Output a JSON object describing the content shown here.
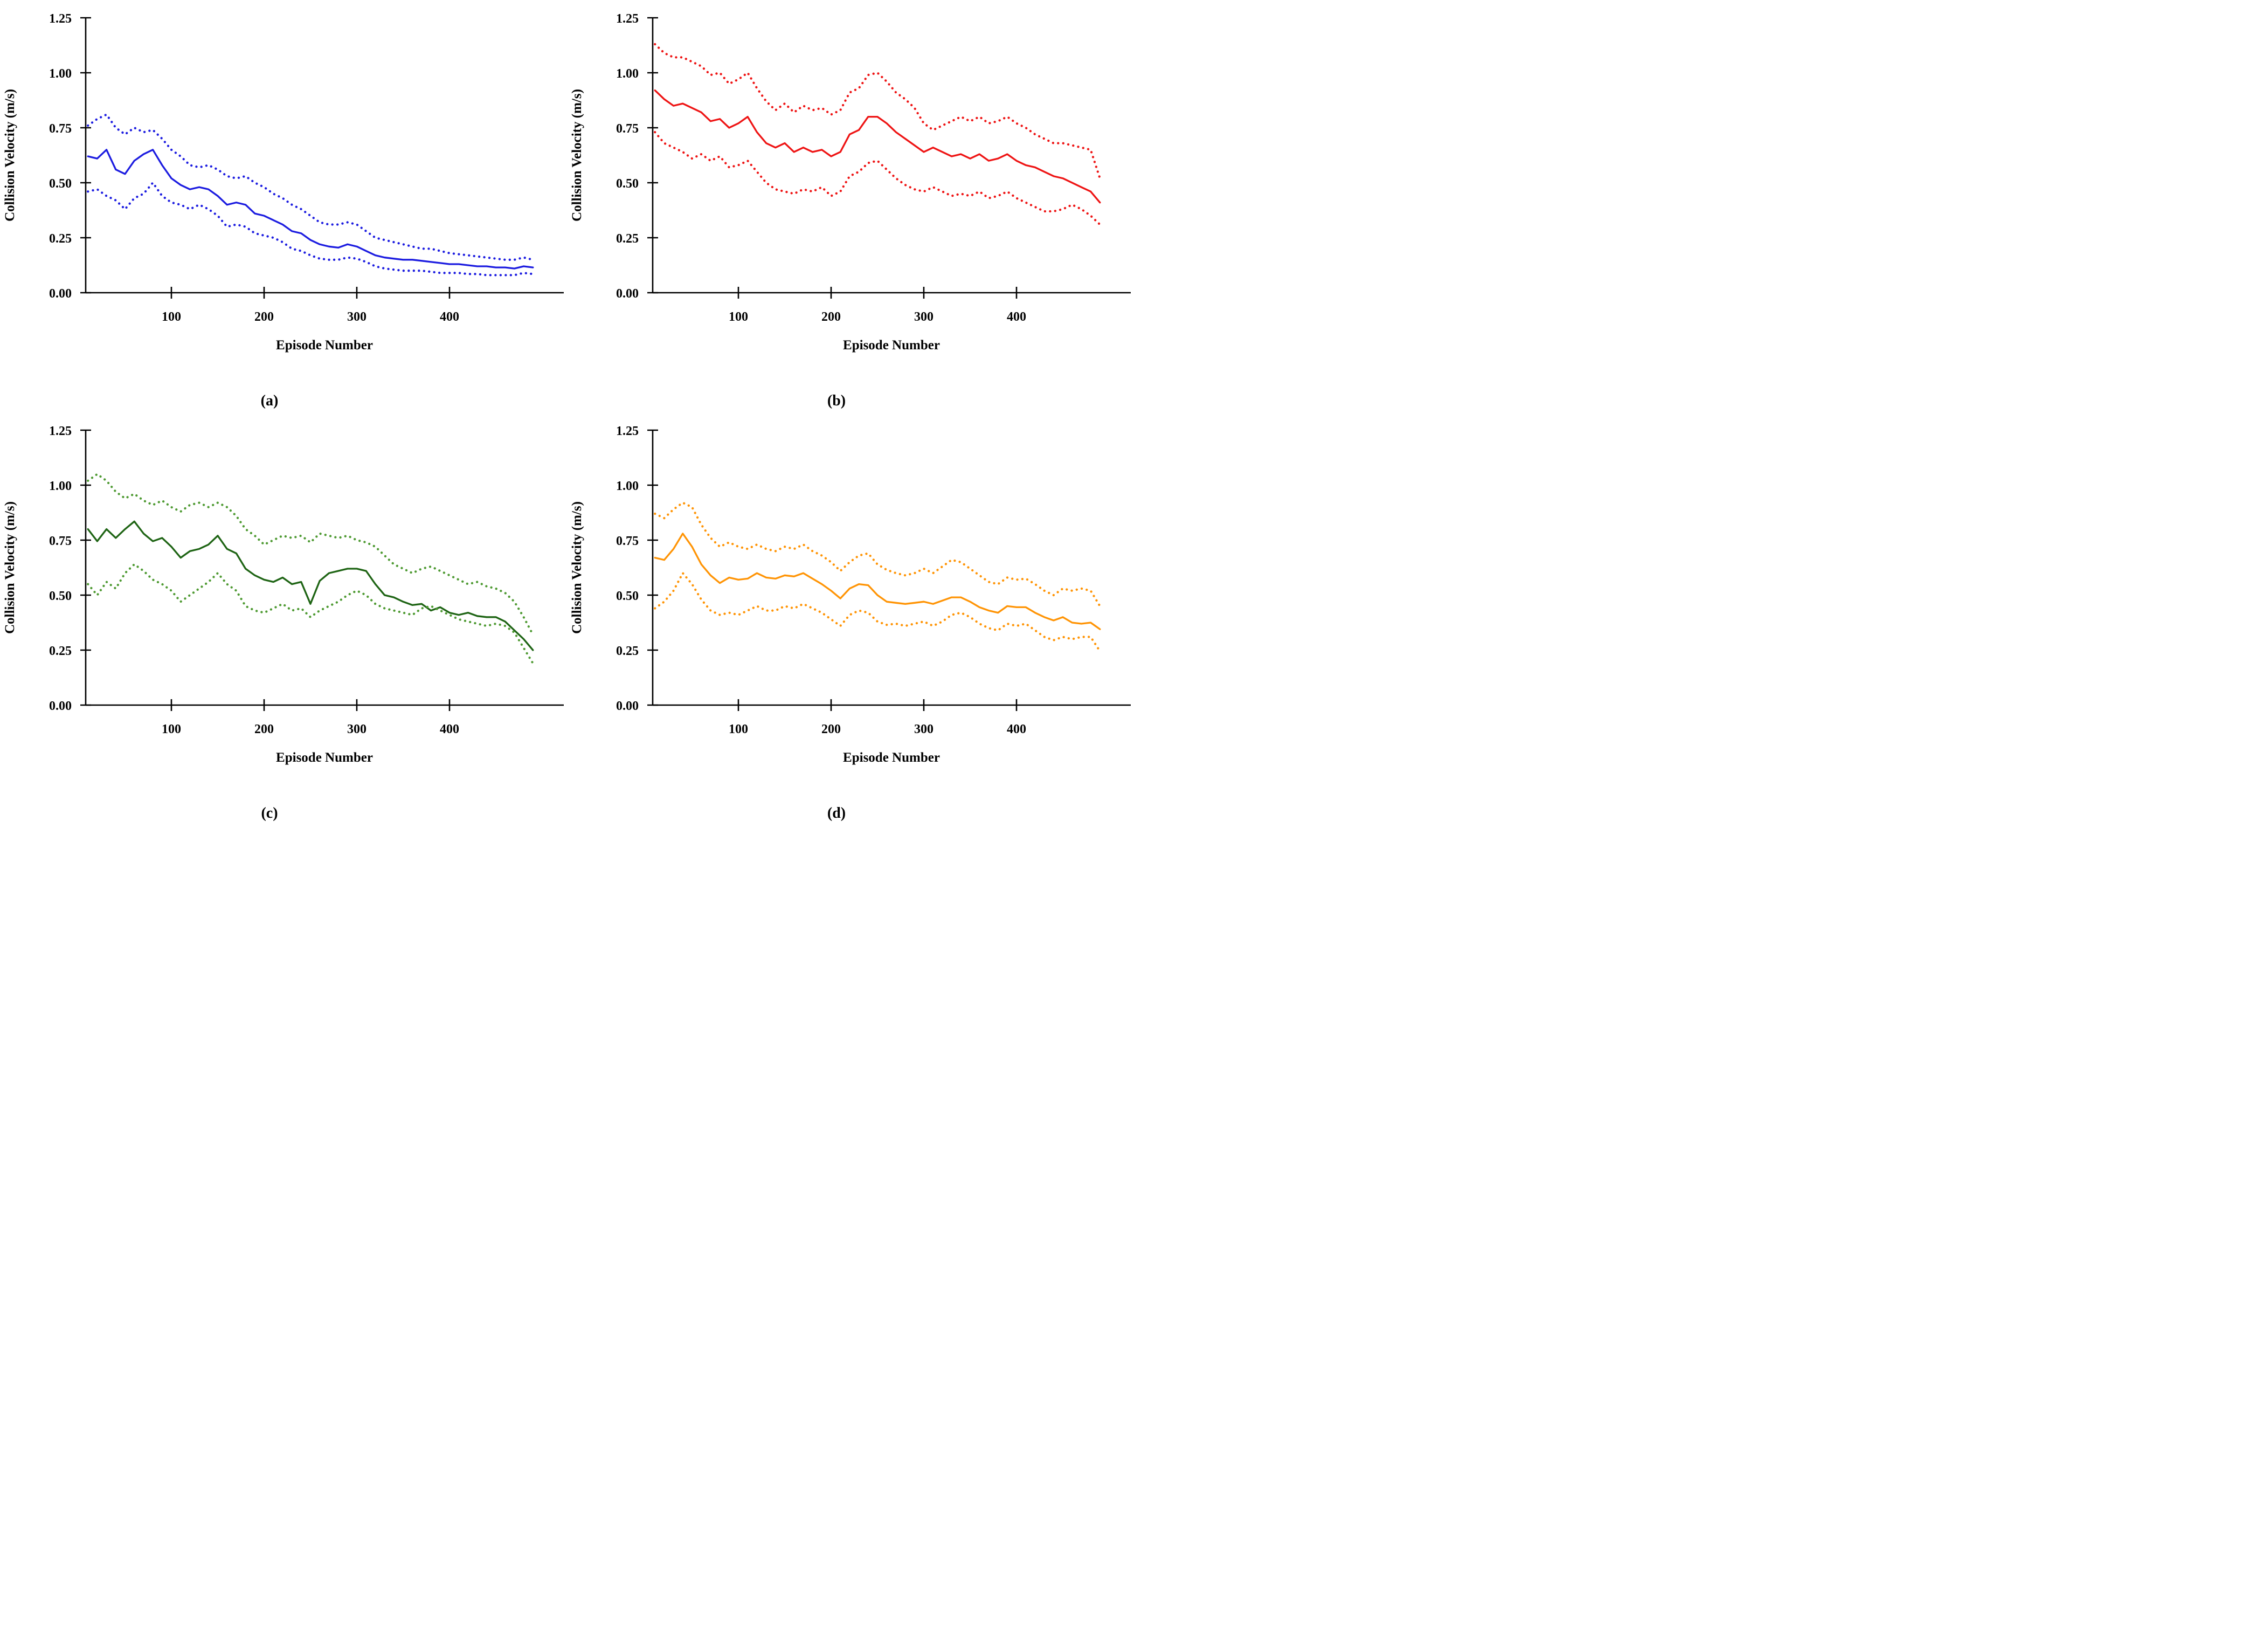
{
  "figure": {
    "ylabel": "Collision Velocity (m/s)",
    "xlabel": "Episode Number",
    "background": "#ffffff",
    "axis_color": "#000000",
    "y_ticks": [
      {
        "label": "0.00",
        "value": 0.0
      },
      {
        "label": "0.25",
        "value": 0.25
      },
      {
        "label": "0.50",
        "value": 0.5
      },
      {
        "label": "0.75",
        "value": 0.75
      },
      {
        "label": "1.00",
        "value": 1.0
      },
      {
        "label": "1.25",
        "value": 1.25
      }
    ],
    "x_ticks": [
      {
        "label": "100",
        "value": 100
      },
      {
        "label": "200",
        "value": 200
      },
      {
        "label": "300",
        "value": 300
      },
      {
        "label": "400",
        "value": 400
      }
    ]
  },
  "chart_data": [
    {
      "type": "line",
      "panel": "a",
      "caption": "(a)",
      "title": "",
      "xlabel": "Episode Number",
      "ylabel": "Collision Velocity (m/s)",
      "xlim": [
        0,
        510
      ],
      "ylim": [
        0,
        1.25
      ],
      "grid": false,
      "legend": "none",
      "line_color": "#1c1ce0",
      "bound_color": "#1c1ce0",
      "x": [
        10,
        20,
        30,
        40,
        50,
        60,
        70,
        80,
        90,
        100,
        110,
        120,
        130,
        140,
        150,
        160,
        170,
        180,
        190,
        200,
        210,
        220,
        230,
        240,
        250,
        260,
        270,
        280,
        290,
        300,
        310,
        320,
        330,
        340,
        350,
        360,
        370,
        380,
        390,
        400,
        410,
        420,
        430,
        440,
        450,
        460,
        470,
        480,
        490
      ],
      "series": [
        {
          "name": "mean",
          "style": "solid",
          "values": [
            0.62,
            0.61,
            0.65,
            0.56,
            0.54,
            0.6,
            0.63,
            0.65,
            0.58,
            0.52,
            0.49,
            0.47,
            0.48,
            0.47,
            0.44,
            0.4,
            0.41,
            0.4,
            0.36,
            0.35,
            0.33,
            0.31,
            0.28,
            0.27,
            0.24,
            0.22,
            0.21,
            0.205,
            0.22,
            0.21,
            0.19,
            0.17,
            0.16,
            0.155,
            0.15,
            0.15,
            0.145,
            0.14,
            0.135,
            0.13,
            0.13,
            0.125,
            0.12,
            0.12,
            0.115,
            0.115,
            0.11,
            0.12,
            0.115
          ]
        },
        {
          "name": "upper-bound",
          "style": "dotted",
          "values": [
            0.76,
            0.79,
            0.81,
            0.75,
            0.72,
            0.75,
            0.73,
            0.74,
            0.7,
            0.65,
            0.62,
            0.58,
            0.57,
            0.58,
            0.56,
            0.53,
            0.52,
            0.53,
            0.5,
            0.48,
            0.45,
            0.43,
            0.4,
            0.38,
            0.35,
            0.32,
            0.31,
            0.31,
            0.32,
            0.31,
            0.28,
            0.25,
            0.24,
            0.23,
            0.22,
            0.21,
            0.2,
            0.2,
            0.19,
            0.18,
            0.175,
            0.17,
            0.165,
            0.16,
            0.155,
            0.15,
            0.15,
            0.16,
            0.15
          ]
        },
        {
          "name": "lower-bound",
          "style": "dotted",
          "values": [
            0.46,
            0.47,
            0.44,
            0.42,
            0.38,
            0.43,
            0.45,
            0.5,
            0.44,
            0.41,
            0.4,
            0.38,
            0.4,
            0.38,
            0.35,
            0.3,
            0.31,
            0.3,
            0.27,
            0.26,
            0.25,
            0.23,
            0.2,
            0.19,
            0.17,
            0.155,
            0.15,
            0.15,
            0.16,
            0.155,
            0.14,
            0.12,
            0.11,
            0.105,
            0.1,
            0.1,
            0.1,
            0.095,
            0.09,
            0.09,
            0.09,
            0.085,
            0.085,
            0.08,
            0.08,
            0.08,
            0.08,
            0.09,
            0.085
          ]
        }
      ]
    },
    {
      "type": "line",
      "panel": "b",
      "caption": "(b)",
      "title": "",
      "xlabel": "Episode Number",
      "ylabel": "Collision Velocity (m/s)",
      "xlim": [
        0,
        510
      ],
      "ylim": [
        0,
        1.25
      ],
      "grid": false,
      "legend": "none",
      "line_color": "#ee1414",
      "bound_color": "#ee1414",
      "x": [
        10,
        20,
        30,
        40,
        50,
        60,
        70,
        80,
        90,
        100,
        110,
        120,
        130,
        140,
        150,
        160,
        170,
        180,
        190,
        200,
        210,
        220,
        230,
        240,
        250,
        260,
        270,
        280,
        290,
        300,
        310,
        320,
        330,
        340,
        350,
        360,
        370,
        380,
        390,
        400,
        410,
        420,
        430,
        440,
        450,
        460,
        470,
        480,
        490
      ],
      "series": [
        {
          "name": "mean",
          "style": "solid",
          "values": [
            0.92,
            0.88,
            0.85,
            0.86,
            0.84,
            0.82,
            0.78,
            0.79,
            0.75,
            0.77,
            0.8,
            0.73,
            0.68,
            0.66,
            0.68,
            0.64,
            0.66,
            0.64,
            0.65,
            0.62,
            0.64,
            0.72,
            0.74,
            0.8,
            0.8,
            0.77,
            0.73,
            0.7,
            0.67,
            0.64,
            0.66,
            0.64,
            0.62,
            0.63,
            0.61,
            0.63,
            0.6,
            0.61,
            0.63,
            0.6,
            0.58,
            0.57,
            0.55,
            0.53,
            0.52,
            0.5,
            0.48,
            0.46,
            0.41
          ]
        },
        {
          "name": "upper-bound",
          "style": "dotted",
          "values": [
            1.13,
            1.09,
            1.07,
            1.07,
            1.05,
            1.03,
            0.99,
            1.0,
            0.95,
            0.97,
            1.0,
            0.93,
            0.87,
            0.83,
            0.86,
            0.82,
            0.85,
            0.83,
            0.84,
            0.81,
            0.83,
            0.91,
            0.93,
            0.99,
            1.0,
            0.96,
            0.91,
            0.88,
            0.84,
            0.77,
            0.74,
            0.76,
            0.78,
            0.8,
            0.78,
            0.8,
            0.77,
            0.78,
            0.8,
            0.77,
            0.75,
            0.72,
            0.7,
            0.68,
            0.68,
            0.67,
            0.66,
            0.65,
            0.52
          ]
        },
        {
          "name": "lower-bound",
          "style": "dotted",
          "values": [
            0.73,
            0.68,
            0.66,
            0.64,
            0.61,
            0.63,
            0.6,
            0.62,
            0.57,
            0.58,
            0.6,
            0.55,
            0.5,
            0.47,
            0.46,
            0.45,
            0.47,
            0.46,
            0.48,
            0.44,
            0.46,
            0.53,
            0.55,
            0.59,
            0.6,
            0.56,
            0.52,
            0.49,
            0.47,
            0.46,
            0.48,
            0.46,
            0.44,
            0.45,
            0.44,
            0.46,
            0.43,
            0.44,
            0.46,
            0.43,
            0.41,
            0.39,
            0.37,
            0.37,
            0.38,
            0.4,
            0.38,
            0.35,
            0.31
          ]
        }
      ]
    },
    {
      "type": "line",
      "panel": "c",
      "caption": "(c)",
      "title": "",
      "xlabel": "Episode Number",
      "ylabel": "Collision Velocity (m/s)",
      "xlim": [
        0,
        510
      ],
      "ylim": [
        0,
        1.25
      ],
      "grid": false,
      "legend": "none",
      "line_color": "#1e6414",
      "bound_color": "#4e9a32",
      "x": [
        10,
        20,
        30,
        40,
        50,
        60,
        70,
        80,
        90,
        100,
        110,
        120,
        130,
        140,
        150,
        160,
        170,
        180,
        190,
        200,
        210,
        220,
        230,
        240,
        250,
        260,
        270,
        280,
        290,
        300,
        310,
        320,
        330,
        340,
        350,
        360,
        370,
        380,
        390,
        400,
        410,
        420,
        430,
        440,
        450,
        460,
        470,
        480,
        490
      ],
      "series": [
        {
          "name": "mean",
          "style": "solid",
          "values": [
            0.8,
            0.745,
            0.8,
            0.76,
            0.8,
            0.835,
            0.78,
            0.745,
            0.76,
            0.72,
            0.67,
            0.7,
            0.71,
            0.73,
            0.77,
            0.71,
            0.69,
            0.62,
            0.59,
            0.57,
            0.56,
            0.58,
            0.55,
            0.56,
            0.46,
            0.565,
            0.6,
            0.61,
            0.62,
            0.62,
            0.61,
            0.55,
            0.5,
            0.49,
            0.47,
            0.455,
            0.46,
            0.43,
            0.445,
            0.42,
            0.41,
            0.42,
            0.405,
            0.4,
            0.4,
            0.38,
            0.34,
            0.3,
            0.25
          ]
        },
        {
          "name": "upper-bound",
          "style": "dotted",
          "values": [
            1.02,
            1.05,
            1.02,
            0.97,
            0.94,
            0.96,
            0.93,
            0.91,
            0.93,
            0.9,
            0.88,
            0.91,
            0.92,
            0.9,
            0.92,
            0.9,
            0.86,
            0.8,
            0.77,
            0.73,
            0.75,
            0.77,
            0.76,
            0.77,
            0.74,
            0.78,
            0.77,
            0.76,
            0.77,
            0.75,
            0.74,
            0.72,
            0.68,
            0.64,
            0.62,
            0.6,
            0.62,
            0.63,
            0.61,
            0.59,
            0.57,
            0.55,
            0.56,
            0.54,
            0.53,
            0.51,
            0.47,
            0.4,
            0.32
          ]
        },
        {
          "name": "lower-bound",
          "style": "dotted",
          "values": [
            0.55,
            0.5,
            0.56,
            0.53,
            0.6,
            0.64,
            0.61,
            0.57,
            0.55,
            0.52,
            0.47,
            0.5,
            0.53,
            0.56,
            0.6,
            0.55,
            0.52,
            0.45,
            0.43,
            0.42,
            0.44,
            0.46,
            0.43,
            0.44,
            0.4,
            0.43,
            0.45,
            0.47,
            0.5,
            0.52,
            0.5,
            0.46,
            0.44,
            0.43,
            0.42,
            0.41,
            0.44,
            0.45,
            0.43,
            0.41,
            0.39,
            0.38,
            0.37,
            0.36,
            0.37,
            0.36,
            0.33,
            0.26,
            0.19
          ]
        }
      ]
    },
    {
      "type": "line",
      "panel": "d",
      "caption": "(d)",
      "title": "",
      "xlabel": "Episode Number",
      "ylabel": "Collision Velocity (m/s)",
      "xlim": [
        0,
        510
      ],
      "ylim": [
        0,
        1.25
      ],
      "grid": false,
      "legend": "none",
      "line_color": "#ff9405",
      "bound_color": "#ff9405",
      "x": [
        10,
        20,
        30,
        40,
        50,
        60,
        70,
        80,
        90,
        100,
        110,
        120,
        130,
        140,
        150,
        160,
        170,
        180,
        190,
        200,
        210,
        220,
        230,
        240,
        250,
        260,
        270,
        280,
        290,
        300,
        310,
        320,
        330,
        340,
        350,
        360,
        370,
        380,
        390,
        400,
        410,
        420,
        430,
        440,
        450,
        460,
        470,
        480,
        490
      ],
      "series": [
        {
          "name": "mean",
          "style": "solid",
          "values": [
            0.67,
            0.66,
            0.71,
            0.78,
            0.72,
            0.64,
            0.59,
            0.555,
            0.58,
            0.57,
            0.575,
            0.6,
            0.58,
            0.575,
            0.59,
            0.585,
            0.6,
            0.575,
            0.55,
            0.52,
            0.485,
            0.53,
            0.55,
            0.545,
            0.5,
            0.47,
            0.465,
            0.46,
            0.465,
            0.47,
            0.46,
            0.475,
            0.49,
            0.49,
            0.47,
            0.445,
            0.43,
            0.42,
            0.45,
            0.445,
            0.445,
            0.42,
            0.4,
            0.385,
            0.4,
            0.375,
            0.37,
            0.375,
            0.345
          ]
        },
        {
          "name": "upper-bound",
          "style": "dotted",
          "values": [
            0.87,
            0.85,
            0.89,
            0.92,
            0.9,
            0.82,
            0.76,
            0.72,
            0.74,
            0.72,
            0.71,
            0.73,
            0.71,
            0.7,
            0.72,
            0.71,
            0.73,
            0.7,
            0.68,
            0.65,
            0.61,
            0.65,
            0.68,
            0.69,
            0.64,
            0.615,
            0.6,
            0.59,
            0.6,
            0.62,
            0.6,
            0.63,
            0.66,
            0.65,
            0.62,
            0.59,
            0.56,
            0.55,
            0.58,
            0.57,
            0.575,
            0.55,
            0.52,
            0.5,
            0.53,
            0.52,
            0.53,
            0.52,
            0.45
          ]
        },
        {
          "name": "lower-bound",
          "style": "dotted",
          "values": [
            0.44,
            0.47,
            0.52,
            0.6,
            0.55,
            0.48,
            0.43,
            0.41,
            0.42,
            0.41,
            0.43,
            0.45,
            0.43,
            0.43,
            0.45,
            0.44,
            0.46,
            0.44,
            0.42,
            0.39,
            0.36,
            0.41,
            0.43,
            0.42,
            0.38,
            0.365,
            0.37,
            0.36,
            0.37,
            0.38,
            0.36,
            0.38,
            0.41,
            0.42,
            0.4,
            0.37,
            0.35,
            0.34,
            0.37,
            0.36,
            0.37,
            0.34,
            0.31,
            0.295,
            0.31,
            0.3,
            0.31,
            0.31,
            0.245
          ]
        }
      ]
    }
  ]
}
